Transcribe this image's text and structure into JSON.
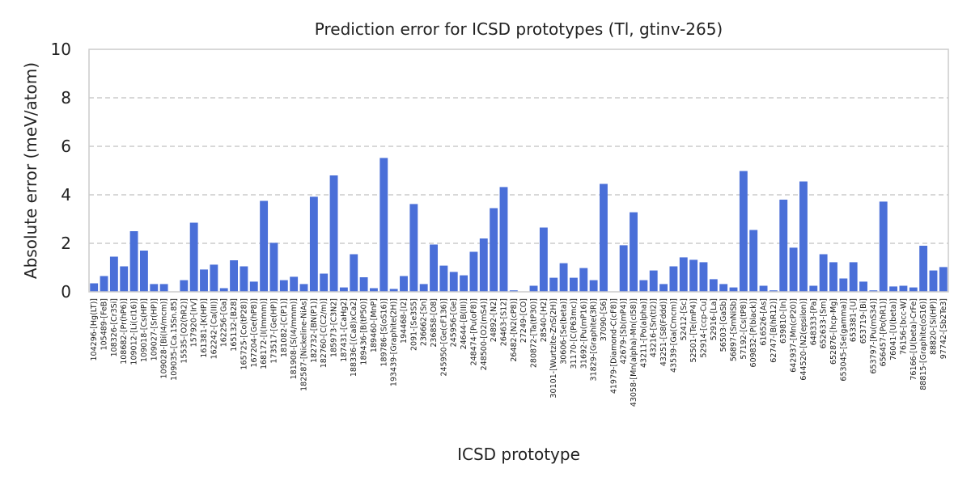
{
  "chart_data": {
    "type": "bar",
    "title": "Prediction error for ICSD prototypes (Tl, gtinv-265)",
    "xlabel": "ICSD prototype",
    "ylabel": "Absolute error (meV/atom)",
    "ylim": [
      0,
      10
    ],
    "yticks": [
      "0",
      "2",
      "4",
      "6",
      "8",
      "10"
    ],
    "grid": "y-dashed",
    "bar_color": "#4a6fd8",
    "categories": [
      "104296-[Hg(LT)]",
      "105489-[FeB]",
      "108326-[Cr3Si]",
      "108682-[Pr(hP6)]",
      "109012-[Li(cI16)]",
      "109018-[Cs(HP)]",
      "109027-[Sr(HP)]",
      "109028-[Bi(I4/mcm)]",
      "109035-[Ca.15Sn.85]",
      "15535-[O2(hR2)]",
      "157920-[IrV]",
      "161381-[K(HP)]",
      "162242-[Ca(III)]",
      "162256-[Ga]",
      "165132-[B28]",
      "165725-[Co(tP28)]",
      "167204-[Ge(hP8)]",
      "168172-[I(Immm)]",
      "173517-[Ge(HP)]",
      "181082-[C(P1)]",
      "181908-[S(I4/mmm)]",
      "182587-[Nickeline-NiAs]",
      "182732-[BN(P1)]",
      "182760-[C(C2/m)]",
      "185973-[C3N2]",
      "187431-[CaHg2]",
      "188336-[(Ca8)xCa2]",
      "189436-[B(tP50)]",
      "189460-[MnP]",
      "189786-[S(oS16)]",
      "193439-[Graphite(2H)]",
      "194468-[I2]",
      "2091-[Se3S5]",
      "236662-[Sn]",
      "236858-[O8]",
      "245950-[Ge(cF136)]",
      "245956-[Ge]",
      "24644-[B(III)]",
      "248474-[Pu(oF8)]",
      "248500-[O2(mS4)]",
      "24892-[N2]",
      "26463-[S12]",
      "26482-[N2(cP8)]",
      "27249-[CO]",
      "280872-[Ta(tP30)]",
      "28540-[H2]",
      "30101-[Wurtzite-ZnS(2H)]",
      "30606-[Se(beta)]",
      "31170-[C(P63mc)]",
      "31692-[Pu(mP16)]",
      "31829-[Graphite(3R)]",
      "37090-[S6]",
      "41979-[Diamond-C(cF8)]",
      "42679-[Sb(mP4)]",
      "43058-[Mn(alpha)-Mn(cI58)]",
      "43211-[Po(alpha)]",
      "43216-[Sn(tI2)]",
      "43251-[S8(Fddd)]",
      "43539-[Ga(Cmcm)]",
      "52412-[Sc]",
      "52501-[Te(mP4)]",
      "52914-[ccp-Cu]",
      "52916-[La]",
      "56503-[GaSb]",
      "56897-[SmNiSb]",
      "57192-[Cs(tP8)]",
      "609832-[P(black)]",
      "616526-[As]",
      "62747-[B(hR12)]",
      "639810-[In]",
      "642937-[Mn(cP20)]",
      "644520-[N2(epsilon)]",
      "648333-[Pa]",
      "652633-[Sm]",
      "652876-[hcp-Mg]",
      "653045-[Se(gamma)]",
      "653381-[U]",
      "653719-[Bi]",
      "653797-[Pu(mS34)]",
      "656457-[Po(hR1)]",
      "76041-[U(beta)]",
      "76156-[bcc-W]",
      "76166-[U(beta)-CrFe]",
      "88815-[Graphite(oS16)]",
      "88820-[Si(HP)]",
      "97742-[Sb2Te3]"
    ],
    "values": [
      0.35,
      0.65,
      1.45,
      1.05,
      2.5,
      1.7,
      0.32,
      0.32,
      0.0,
      0.48,
      2.85,
      0.92,
      1.12,
      0.15,
      1.3,
      1.05,
      0.42,
      3.75,
      2.02,
      0.48,
      0.62,
      0.32,
      3.92,
      0.75,
      4.8,
      0.18,
      1.55,
      0.6,
      0.15,
      5.52,
      0.12,
      0.65,
      3.62,
      0.32,
      1.95,
      1.08,
      0.82,
      0.68,
      1.65,
      2.2,
      3.45,
      4.32,
      0.06,
      0.0,
      0.25,
      2.65,
      0.58,
      1.18,
      0.58,
      0.98,
      0.48,
      4.45,
      0.0,
      1.92,
      3.28,
      0.48,
      0.88,
      0.32,
      1.05,
      1.42,
      1.32,
      1.22,
      0.52,
      0.32,
      0.18,
      4.98,
      2.55,
      0.25,
      0.06,
      3.8,
      1.82,
      4.55,
      0.25,
      1.55,
      1.22,
      0.55,
      1.22,
      0.42,
      0.06,
      3.72,
      0.22,
      0.25,
      0.18,
      1.9,
      0.88,
      1.02
    ]
  }
}
